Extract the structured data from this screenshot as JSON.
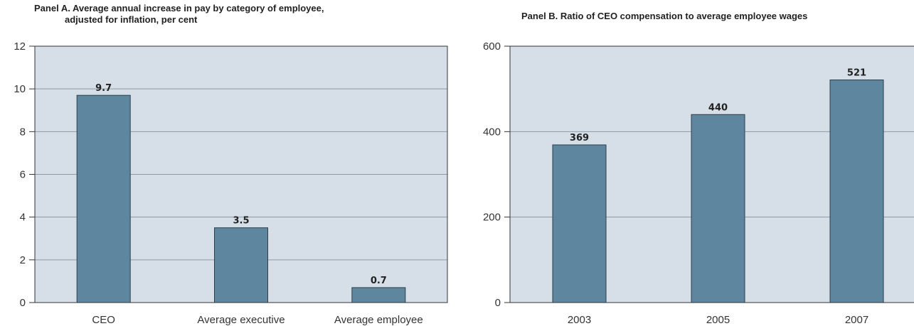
{
  "chart_data": [
    {
      "type": "bar",
      "title_lines": [
        "Panel A.  Average annual increase in pay by category of employee,",
        "adjusted for inflation, per cent"
      ],
      "categories": [
        "CEO",
        "Average executive",
        "Average employee"
      ],
      "values": [
        9.7,
        3.5,
        0.7
      ],
      "value_labels": [
        "9.7",
        "3.5",
        "0.7"
      ],
      "ylim": [
        0,
        12
      ],
      "yticks": [
        0,
        2,
        4,
        6,
        8,
        10,
        12
      ],
      "xlabel": "",
      "ylabel": "",
      "grid": true,
      "legend": "none"
    },
    {
      "type": "bar",
      "title": "Panel B.  Ratio of CEO compensation to average employee wages",
      "categories": [
        "2003",
        "2005",
        "2007"
      ],
      "values": [
        369,
        440,
        521
      ],
      "value_labels": [
        "369",
        "440",
        "521"
      ],
      "ylim": [
        0,
        600
      ],
      "yticks": [
        0,
        200,
        400,
        600
      ],
      "xlabel": "",
      "ylabel": "",
      "grid": true,
      "legend": "none"
    }
  ],
  "colors": {
    "plot_background": "#d6dfe7",
    "bar_fill": "#5e869f",
    "bar_stroke": "#2c3e4c",
    "gridline": "#8d9aa5",
    "axis": "#333333"
  }
}
